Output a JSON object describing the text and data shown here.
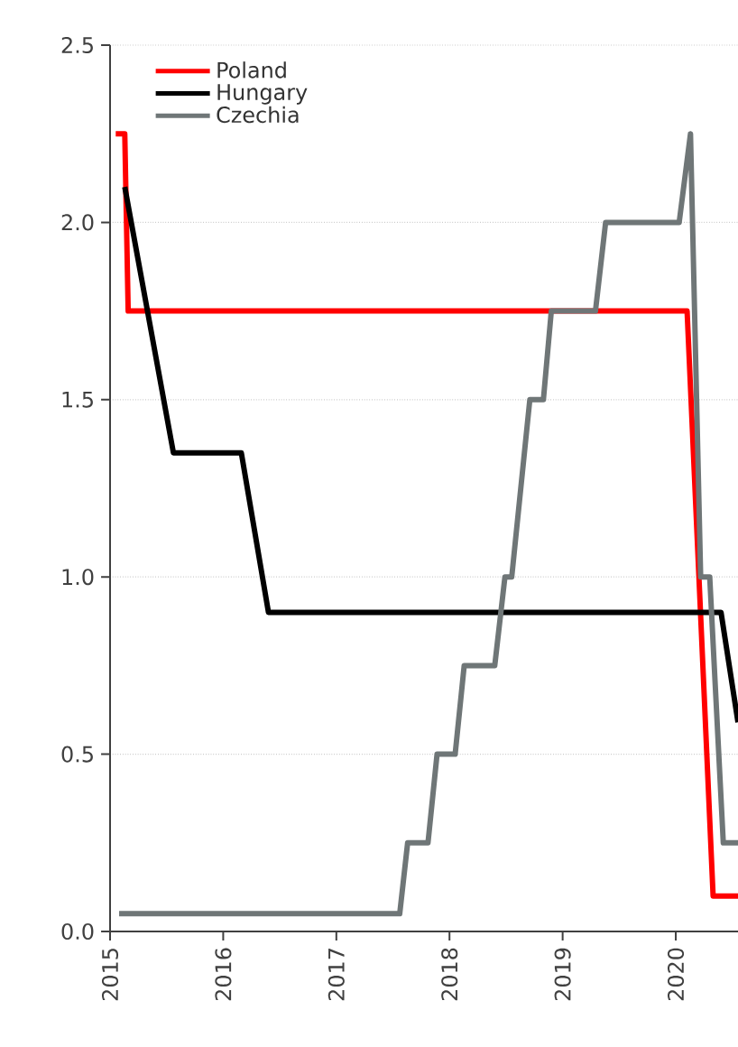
{
  "chart_data": {
    "type": "line",
    "xlim": [
      2015,
      2020.55
    ],
    "ylim": [
      0,
      2.5
    ],
    "xticks": [
      2015,
      2016,
      2017,
      2018,
      2019,
      2020
    ],
    "yticks": [
      {
        "value": 0,
        "label": "0.0"
      },
      {
        "value": 0.5,
        "label": "0.5"
      },
      {
        "value": 1,
        "label": "1.0"
      },
      {
        "value": 1.5,
        "label": "1.5"
      },
      {
        "value": 2,
        "label": "2.0"
      },
      {
        "value": 2.5,
        "label": "2.5"
      }
    ],
    "grid": "y",
    "legend": "top left",
    "marker": "none",
    "line_style": "solid",
    "series": [
      {
        "name": "Poland",
        "color": "#ff0000",
        "x": [
          2015.05,
          2015.13,
          2015.16,
          2020.1,
          2020.33,
          2020.55
        ],
        "values": [
          2.25,
          2.25,
          1.75,
          1.75,
          0.1,
          0.1
        ]
      },
      {
        "name": "Hungary",
        "color": "#000000",
        "x": [
          2015.13,
          2015.56,
          2016.16,
          2016.4,
          2020.4,
          2020.55
        ],
        "values": [
          2.1,
          1.35,
          1.35,
          0.9,
          0.9,
          0.59
        ]
      },
      {
        "name": "Czechia",
        "color": "#6f7677",
        "x": [
          2015.08,
          2017.56,
          2017.63,
          2017.81,
          2017.89,
          2018.05,
          2018.13,
          2018.4,
          2018.49,
          2018.55,
          2018.71,
          2018.83,
          2018.9,
          2019.29,
          2019.38,
          2020.03,
          2020.13,
          2020.22,
          2020.3,
          2020.42,
          2020.55
        ],
        "values": [
          0.05,
          0.05,
          0.25,
          0.25,
          0.5,
          0.5,
          0.75,
          0.75,
          1.0,
          1.0,
          1.5,
          1.5,
          1.75,
          1.75,
          2.0,
          2.0,
          2.25,
          1.0,
          1.0,
          0.25,
          0.25
        ]
      }
    ]
  }
}
